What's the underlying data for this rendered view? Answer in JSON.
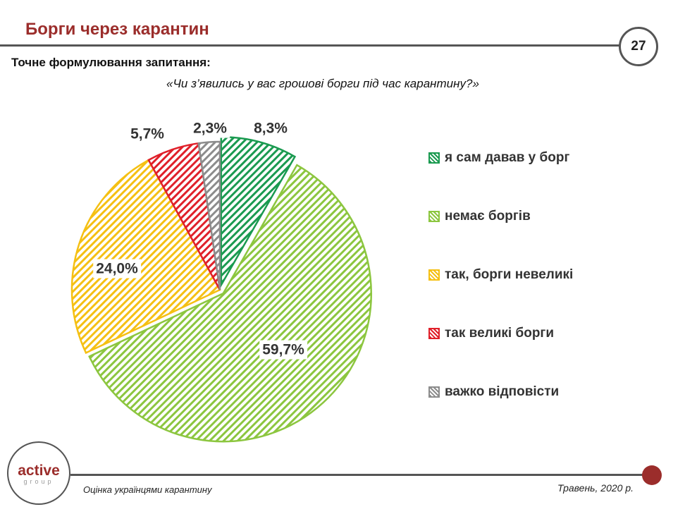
{
  "header": {
    "title": "Борги через карантин",
    "page_number": "27",
    "question_label": "Точне формулювання запитання:",
    "question_text": "«Чи з’явились у вас грошові борги під час карантину?»"
  },
  "footer": {
    "logo_main": "active",
    "logo_sub": "group",
    "left_text": "Оцінка українцями карантину",
    "right_text": "Травень, 2020 р."
  },
  "chart_data": {
    "type": "pie",
    "title": "",
    "legend_position": "right",
    "slices": [
      {
        "name": "я сам давав у борг",
        "value": 8.3,
        "label": "8,3%",
        "color": "#1a9a50",
        "exploded": true
      },
      {
        "name": "немає боргів",
        "value": 59.7,
        "label": "59,7%",
        "color": "#8cc63f",
        "exploded": true
      },
      {
        "name": "так, борги невеликі",
        "value": 24.0,
        "label": "24,0%",
        "color": "#f5c013",
        "exploded": false
      },
      {
        "name": "так великі борги",
        "value": 5.7,
        "label": "5,7%",
        "color": "#e0202a",
        "exploded": false
      },
      {
        "name": "важко відповісти",
        "value": 2.3,
        "label": "2,3%",
        "color": "#8c8c8c",
        "exploded": false
      }
    ]
  }
}
